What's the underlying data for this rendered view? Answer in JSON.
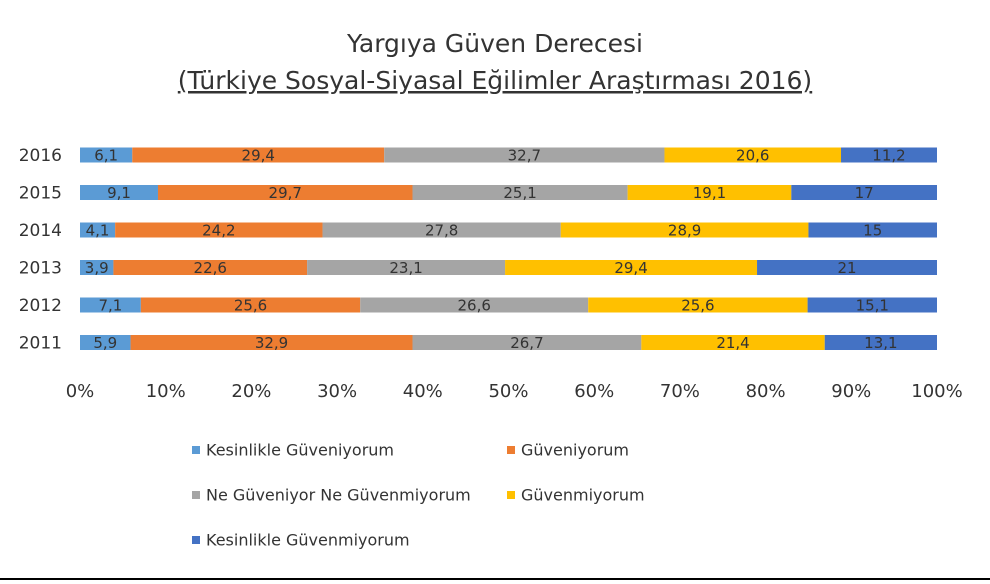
{
  "chart_data": {
    "type": "stacked-bar-horizontal",
    "title": "Yargıya Güven Derecesi",
    "subtitle": "(Türkiye Sosyal-Siyasal Eğilimler Araştırması 2016)",
    "categories": [
      "2016",
      "2015",
      "2014",
      "2013",
      "2012",
      "2011"
    ],
    "series": [
      {
        "name": "Kesinlikle Güveniyorum",
        "color": "#5b9bd5",
        "values": [
          6.1,
          9.1,
          4.1,
          3.9,
          7.1,
          5.9
        ],
        "value_labels": [
          "6,1",
          "9,1",
          "4,1",
          "3,9",
          "7,1",
          "5,9"
        ]
      },
      {
        "name": "Güveniyorum",
        "color": "#ed7d31",
        "values": [
          29.4,
          29.7,
          24.2,
          22.6,
          25.6,
          32.9
        ],
        "value_labels": [
          "29,4",
          "29,7",
          "24,2",
          "22,6",
          "25,6",
          "32,9"
        ]
      },
      {
        "name": "Ne Güveniyor Ne Güvenmiyorum",
        "color": "#a5a5a5",
        "values": [
          32.7,
          25.1,
          27.8,
          23.1,
          26.6,
          26.7
        ],
        "value_labels": [
          "32,7",
          "25,1",
          "27,8",
          "23,1",
          "26,6",
          "26,7"
        ]
      },
      {
        "name": "Güvenmiyorum",
        "color": "#ffc000",
        "values": [
          20.6,
          19.1,
          28.9,
          29.4,
          25.6,
          21.4
        ],
        "value_labels": [
          "20,6",
          "19,1",
          "28,9",
          "29,4",
          "25,6",
          "21,4"
        ]
      },
      {
        "name": "Kesinlikle Güvenmiyorum",
        "color": "#4472c4",
        "values": [
          11.2,
          17,
          15,
          21,
          15.1,
          13.1
        ],
        "value_labels": [
          "11,2",
          "17",
          "15",
          "21",
          "15,1",
          "13,1"
        ]
      }
    ],
    "xlim": [
      0,
      100
    ],
    "xticks": [
      {
        "value": 0,
        "label": "0%"
      },
      {
        "value": 10,
        "label": "10%"
      },
      {
        "value": 20,
        "label": "20%"
      },
      {
        "value": 30,
        "label": "30%"
      },
      {
        "value": 40,
        "label": "40%"
      },
      {
        "value": 50,
        "label": "50%"
      },
      {
        "value": 60,
        "label": "60%"
      },
      {
        "value": 70,
        "label": "70%"
      },
      {
        "value": 80,
        "label": "80%"
      },
      {
        "value": 90,
        "label": "90%"
      },
      {
        "value": 100,
        "label": "100%"
      }
    ],
    "grid": false
  }
}
